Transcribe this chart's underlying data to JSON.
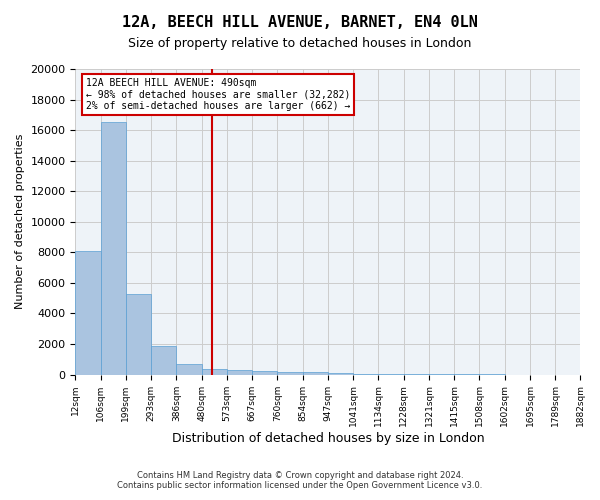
{
  "title": "12A, BEECH HILL AVENUE, BARNET, EN4 0LN",
  "subtitle": "Size of property relative to detached houses in London",
  "xlabel": "Distribution of detached houses by size in London",
  "ylabel": "Number of detached properties",
  "bar_values": [
    8100,
    16500,
    5300,
    1850,
    700,
    350,
    280,
    230,
    180,
    150,
    80,
    50,
    30,
    20,
    15,
    10,
    8,
    5,
    3,
    2
  ],
  "bin_labels": [
    "12sqm",
    "106sqm",
    "199sqm",
    "293sqm",
    "386sqm",
    "480sqm",
    "573sqm",
    "667sqm",
    "760sqm",
    "854sqm",
    "947sqm",
    "1041sqm",
    "1134sqm",
    "1228sqm",
    "1321sqm",
    "1415sqm",
    "1508sqm",
    "1602sqm",
    "1695sqm",
    "1789sqm",
    "1882sqm"
  ],
  "bar_color": "#aac4e0",
  "bar_edgecolor": "#5a9fd4",
  "vline_x_index": 4.9,
  "vline_color": "#cc0000",
  "ylim": [
    0,
    20000
  ],
  "yticks": [
    0,
    2000,
    4000,
    6000,
    8000,
    10000,
    12000,
    14000,
    16000,
    18000,
    20000
  ],
  "annotation_title": "12A BEECH HILL AVENUE: 490sqm",
  "annotation_line1": "← 98% of detached houses are smaller (32,282)",
  "annotation_line2": "2% of semi-detached houses are larger (662) →",
  "annotation_box_color": "#cc0000",
  "grid_color": "#cccccc",
  "background_color": "#ffffff",
  "footer_line1": "Contains HM Land Registry data © Crown copyright and database right 2024.",
  "footer_line2": "Contains public sector information licensed under the Open Government Licence v3.0."
}
